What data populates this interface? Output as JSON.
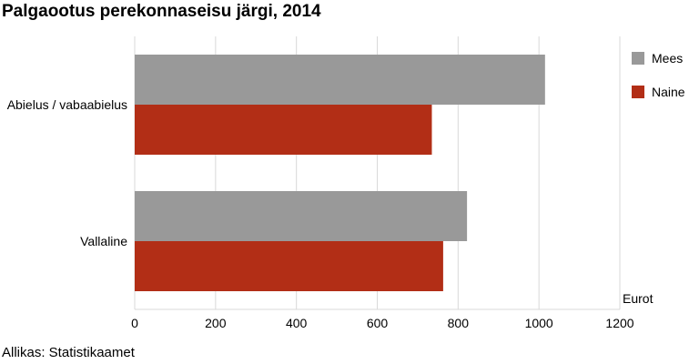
{
  "chart_data": {
    "type": "bar",
    "orientation": "horizontal",
    "title": "Palgaootus perekonnaseisu järgi, 2014",
    "categories": [
      "Abielus / vabaabielus",
      "Vallaline"
    ],
    "series": [
      {
        "name": "Mees",
        "color": "#999999",
        "values": [
          1015,
          822
        ]
      },
      {
        "name": "Naine",
        "color": "#b22e16",
        "values": [
          735,
          763
        ]
      }
    ],
    "xlabel": "Eurot",
    "ylabel": "",
    "xlim": [
      0,
      1200
    ],
    "ticks": [
      "0",
      "200",
      "400",
      "600",
      "800",
      "1000",
      "1200"
    ],
    "grid": true,
    "legend": "top-right",
    "source": "Allikas: Statistikaamet"
  }
}
